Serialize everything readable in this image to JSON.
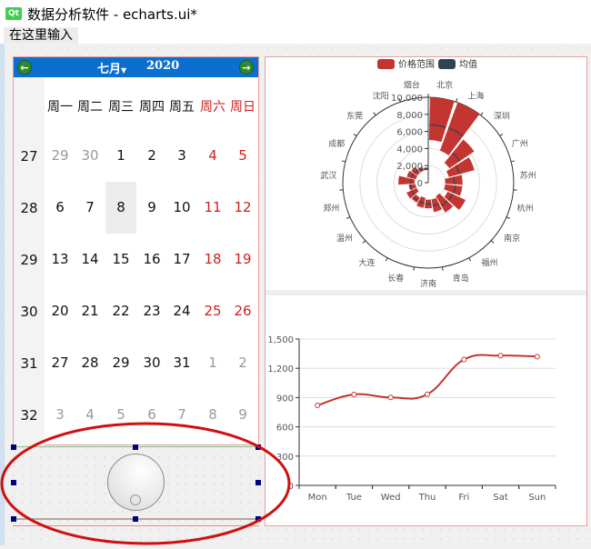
{
  "window": {
    "title": "数据分析软件 - echarts.ui*",
    "logo": "Qt"
  },
  "menubar": {
    "input_placeholder": "在这里输入"
  },
  "calendar": {
    "month": "七月",
    "year": "2020",
    "prev_icon": "arrow-left",
    "next_icon": "arrow-right",
    "weekdays": [
      "周一",
      "周二",
      "周三",
      "周四",
      "周五",
      "周六",
      "周日"
    ],
    "selected": "8",
    "weeks": [
      {
        "week": "27",
        "days": [
          "29",
          "30",
          "1",
          "2",
          "3",
          "4",
          "5"
        ],
        "muted": [
          0,
          1
        ]
      },
      {
        "week": "28",
        "days": [
          "6",
          "7",
          "8",
          "9",
          "10",
          "11",
          "12"
        ],
        "muted": []
      },
      {
        "week": "29",
        "days": [
          "13",
          "14",
          "15",
          "16",
          "17",
          "18",
          "19"
        ],
        "muted": []
      },
      {
        "week": "30",
        "days": [
          "20",
          "21",
          "22",
          "23",
          "24",
          "25",
          "26"
        ],
        "muted": []
      },
      {
        "week": "31",
        "days": [
          "27",
          "28",
          "29",
          "30",
          "31",
          "1",
          "2"
        ],
        "muted": [
          5,
          6
        ]
      },
      {
        "week": "32",
        "days": [
          "3",
          "4",
          "5",
          "6",
          "7",
          "8",
          "9"
        ],
        "muted": [
          0,
          1,
          2,
          3,
          4,
          5,
          6
        ]
      }
    ],
    "colors": {
      "header": "#0c6fd0",
      "weekend": "#d21e1e",
      "muted": "#999999"
    }
  },
  "chart_data": [
    {
      "type": "bar",
      "coordinate": "polar",
      "legend": [
        "价格范围",
        "均值"
      ],
      "legend_placement": "top",
      "categories": [
        "北京",
        "上海",
        "深圳",
        "广州",
        "苏州",
        "杭州",
        "南京",
        "福州",
        "青岛",
        "济南",
        "长春",
        "大连",
        "温州",
        "郑州",
        "武汉",
        "成都",
        "东莞",
        "沈阳",
        "烟台"
      ],
      "min": [
        5000,
        4000,
        3000,
        2500,
        2000,
        2000,
        2500,
        1800,
        2000,
        2000,
        1800,
        2000,
        1500,
        1500,
        1600,
        1500,
        1500,
        1500,
        1500
      ],
      "max": [
        10000,
        10000,
        6500,
        5600,
        4000,
        4000,
        4800,
        4000,
        3500,
        3000,
        3000,
        2700,
        2800,
        2300,
        3500,
        2600,
        2417.54,
        2000,
        1800
      ],
      "mean": [
        6785.71,
        6825,
        4463.33,
        3793.83,
        3060,
        3222.33,
        3133.33,
        3100,
        2750,
        2500,
        2433.33,
        2375,
        2150,
        2100,
        2057.14,
        2037.5,
        1905.85,
        1775,
        1650
      ],
      "radius_ticks": [
        "0",
        "2,000",
        "4,000",
        "6,000",
        "8,000",
        "10,000"
      ],
      "rlim": [
        0,
        10000
      ],
      "colors": {
        "range": "#c23531",
        "mean": "#2f4554"
      }
    },
    {
      "type": "line",
      "smooth": true,
      "categories": [
        "Mon",
        "Tue",
        "Wed",
        "Thu",
        "Fri",
        "Sat",
        "Sun"
      ],
      "values": [
        820,
        932,
        901,
        934,
        1290,
        1330,
        1320
      ],
      "y_ticks": [
        "0",
        "300",
        "600",
        "900",
        "1,200",
        "1,500"
      ],
      "ylim": [
        0,
        1500
      ],
      "grid": true,
      "color": "#c23531"
    }
  ]
}
